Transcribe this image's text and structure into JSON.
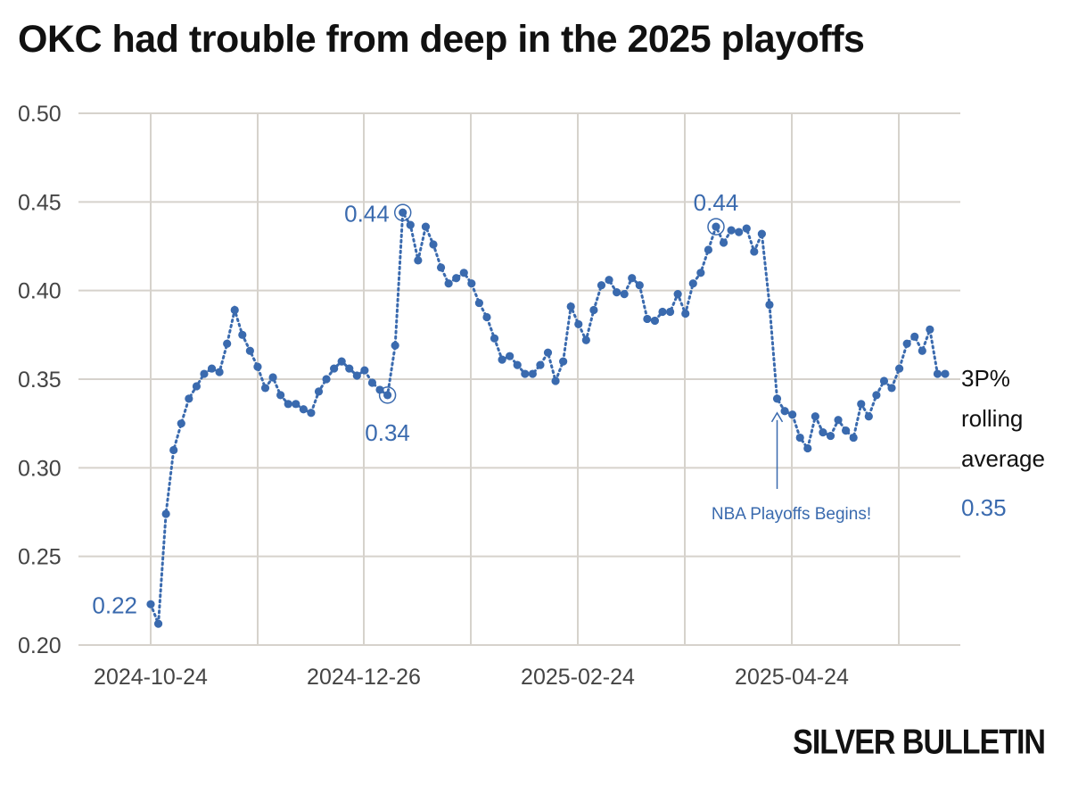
{
  "chart_data": {
    "type": "line",
    "title": "OKC had trouble from deep in the 2025 playoffs",
    "xlabel": "",
    "ylabel": "",
    "ylim": [
      0.2,
      0.5
    ],
    "yticks": [
      "0.20",
      "0.25",
      "0.30",
      "0.35",
      "0.40",
      "0.45",
      "0.50"
    ],
    "xticks": [
      "2024-10-24",
      "2024-12-26",
      "2025-02-24",
      "2025-04-24"
    ],
    "series": [
      {
        "name": "3P% rolling average",
        "color": "#3a6aae",
        "values": [
          0.223,
          0.212,
          0.274,
          0.31,
          0.325,
          0.339,
          0.346,
          0.353,
          0.356,
          0.354,
          0.37,
          0.389,
          0.375,
          0.366,
          0.357,
          0.345,
          0.351,
          0.341,
          0.336,
          0.336,
          0.333,
          0.331,
          0.343,
          0.35,
          0.356,
          0.36,
          0.356,
          0.352,
          0.355,
          0.348,
          0.344,
          0.341,
          0.369,
          0.444,
          0.437,
          0.417,
          0.436,
          0.426,
          0.413,
          0.404,
          0.407,
          0.41,
          0.404,
          0.393,
          0.385,
          0.373,
          0.361,
          0.363,
          0.358,
          0.353,
          0.353,
          0.358,
          0.365,
          0.349,
          0.36,
          0.391,
          0.381,
          0.372,
          0.389,
          0.403,
          0.406,
          0.399,
          0.398,
          0.407,
          0.403,
          0.384,
          0.383,
          0.388,
          0.388,
          0.398,
          0.387,
          0.404,
          0.41,
          0.423,
          0.436,
          0.427,
          0.434,
          0.433,
          0.435,
          0.422,
          0.432,
          0.392,
          0.339,
          0.332,
          0.33,
          0.317,
          0.311,
          0.329,
          0.32,
          0.318,
          0.327,
          0.321,
          0.317,
          0.336,
          0.329,
          0.341,
          0.349,
          0.345,
          0.356,
          0.37,
          0.374,
          0.366,
          0.378,
          0.353,
          0.353
        ]
      }
    ],
    "point_labels": [
      {
        "index": 0,
        "text": "0.22",
        "position": "left"
      },
      {
        "index": 33,
        "text": "0.44",
        "position": "left",
        "circled": true
      },
      {
        "index": 31,
        "text": "0.34",
        "position": "below",
        "circled": true
      },
      {
        "index": 74,
        "text": "0.44",
        "position": "above",
        "circled": true
      }
    ],
    "event": {
      "index": 82,
      "text": "NBA Playoffs Begins!"
    },
    "series_label": [
      "3P%",
      "rolling",
      "average"
    ],
    "last_value_label": "0.35"
  },
  "brand": "SILVER BULLETIN",
  "colors": {
    "series": "#3a6aae",
    "grid": "#d6d2cc",
    "text": "#111111",
    "tick": "#444444"
  }
}
